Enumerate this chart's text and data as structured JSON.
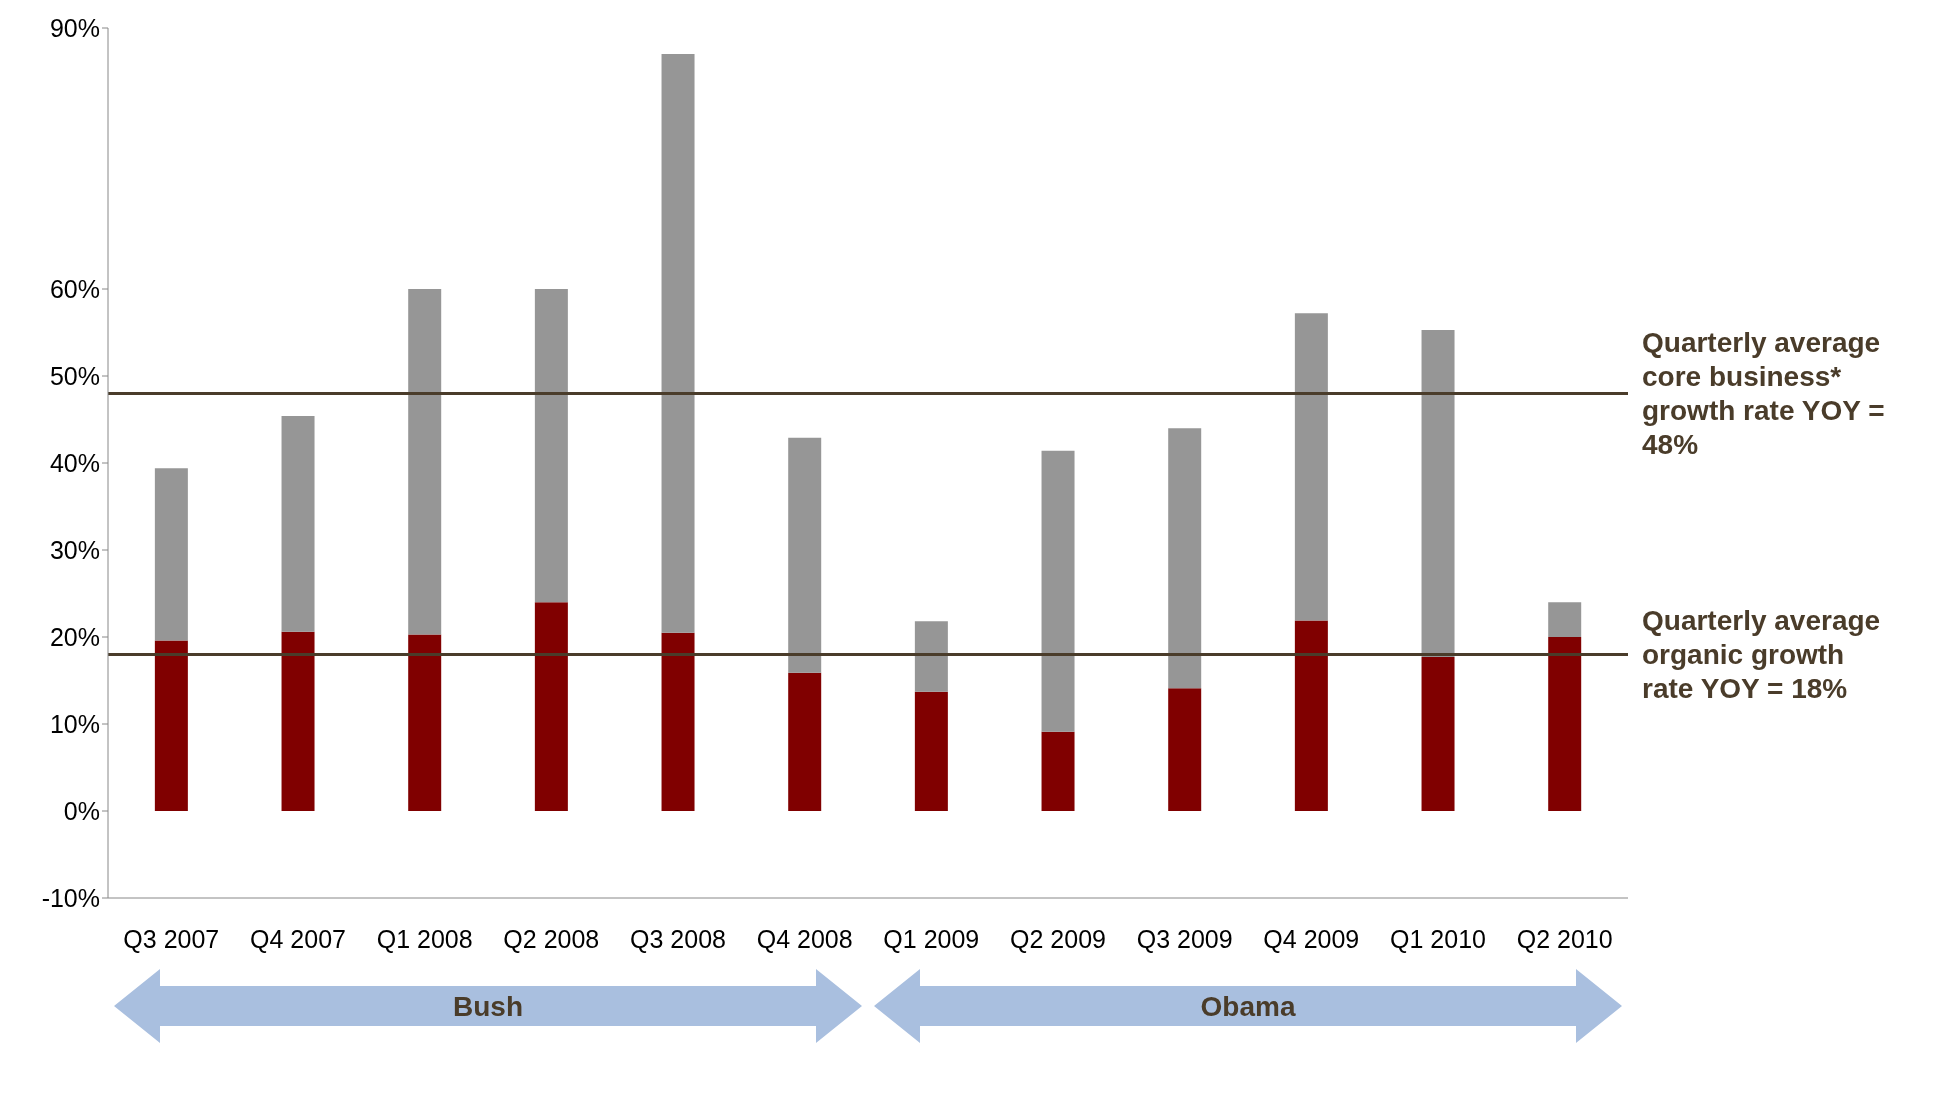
{
  "chart_data": {
    "type": "bar",
    "stacked": true,
    "categories": [
      "Q3 2007",
      "Q4 2007",
      "Q1 2008",
      "Q2 2008",
      "Q3 2008",
      "Q4 2008",
      "Q1 2009",
      "Q2 2009",
      "Q3 2009",
      "Q4 2009",
      "Q1 2010",
      "Q2 2010"
    ],
    "series": [
      {
        "color": "#800000",
        "values": [
          19.6,
          20.6,
          20.3,
          24.0,
          20.5,
          15.9,
          13.7,
          9.1,
          14.1,
          21.9,
          17.7,
          20.0
        ]
      },
      {
        "color": "#969696",
        "values": [
          19.8,
          24.8,
          39.7,
          36.0,
          66.5,
          27.0,
          8.1,
          32.3,
          29.9,
          35.3,
          37.6,
          4.0
        ]
      }
    ],
    "ylim": [
      -10,
      90
    ],
    "yticks": [
      {
        "value": -10,
        "label": "-10%"
      },
      {
        "value": 0,
        "label": "0%"
      },
      {
        "value": 10,
        "label": "10%"
      },
      {
        "value": 20,
        "label": "20%"
      },
      {
        "value": 30,
        "label": "30%"
      },
      {
        "value": 40,
        "label": "40%"
      },
      {
        "value": 50,
        "label": "50%"
      },
      {
        "value": 60,
        "label": "60%"
      },
      {
        "value": 90,
        "label": "90%"
      }
    ],
    "ref_lines": [
      {
        "axis": "y",
        "value": 48,
        "label": "Quarterly average core business* growth rate YOY = 48%",
        "color": "#4a3c2a"
      },
      {
        "axis": "y",
        "value": 18,
        "label": "Quarterly average organic growth rate YOY = 18%",
        "color": "#4a3c2a"
      }
    ],
    "annotations": [
      "Bush",
      "Obama"
    ],
    "grid": false,
    "legend": false
  }
}
